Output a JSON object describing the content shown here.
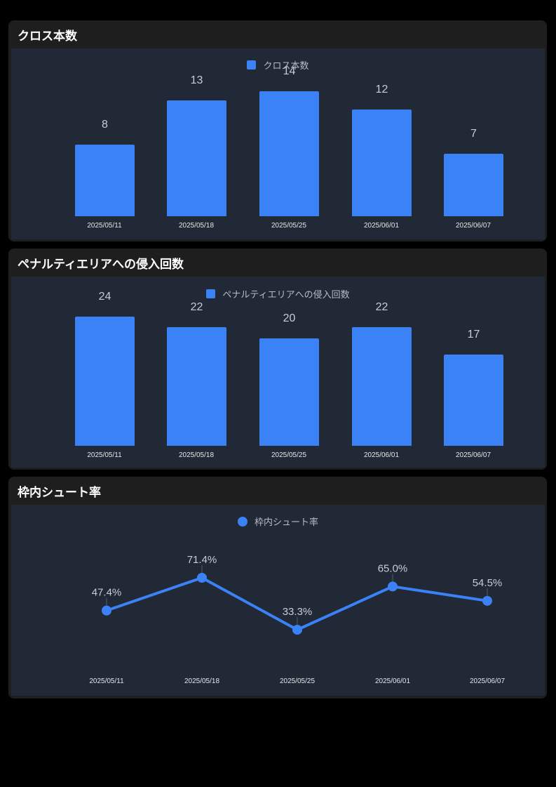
{
  "colors": {
    "series": "#3b82f6",
    "card_header": "#1e1e1e",
    "chart_bg": "#212836",
    "page_bg": "#000000"
  },
  "cards": [
    {
      "title": "クロス本数",
      "legend": "クロス本数",
      "legend_shape": "square"
    },
    {
      "title": "ペナルティエリアへの侵入回数",
      "legend": "ペナルティエリアへの侵入回数",
      "legend_shape": "square"
    },
    {
      "title": "枠内シュート率",
      "legend": "枠内シュート率",
      "legend_shape": "circle"
    }
  ],
  "chart_data": [
    {
      "type": "bar",
      "title": "クロス本数",
      "categories": [
        "2025/05/11",
        "2025/05/18",
        "2025/05/25",
        "2025/06/01",
        "2025/06/07"
      ],
      "series": [
        {
          "name": "クロス本数",
          "values": [
            8,
            13,
            14,
            12,
            7
          ]
        }
      ],
      "labels": [
        "8",
        "13",
        "14",
        "12",
        "7"
      ],
      "legend_position": "top",
      "grid": false,
      "xlabel": "",
      "ylabel": ""
    },
    {
      "type": "bar",
      "title": "ペナルティエリアへの侵入回数",
      "categories": [
        "2025/05/11",
        "2025/05/18",
        "2025/05/25",
        "2025/06/01",
        "2025/06/07"
      ],
      "series": [
        {
          "name": "ペナルティエリアへの侵入回数",
          "values": [
            24,
            22,
            20,
            22,
            17
          ]
        }
      ],
      "labels": [
        "24",
        "22",
        "20",
        "22",
        "17"
      ],
      "legend_position": "top",
      "grid": false,
      "xlabel": "",
      "ylabel": ""
    },
    {
      "type": "line",
      "title": "枠内シュート率",
      "categories": [
        "2025/05/11",
        "2025/05/18",
        "2025/05/25",
        "2025/06/01",
        "2025/06/07"
      ],
      "series": [
        {
          "name": "枠内シュート率",
          "values": [
            47.4,
            71.4,
            33.3,
            65.0,
            54.5
          ]
        }
      ],
      "labels": [
        "47.4%",
        "71.4%",
        "33.3%",
        "65.0%",
        "54.5%"
      ],
      "legend_position": "top",
      "grid": false,
      "xlabel": "",
      "ylabel": ""
    }
  ]
}
